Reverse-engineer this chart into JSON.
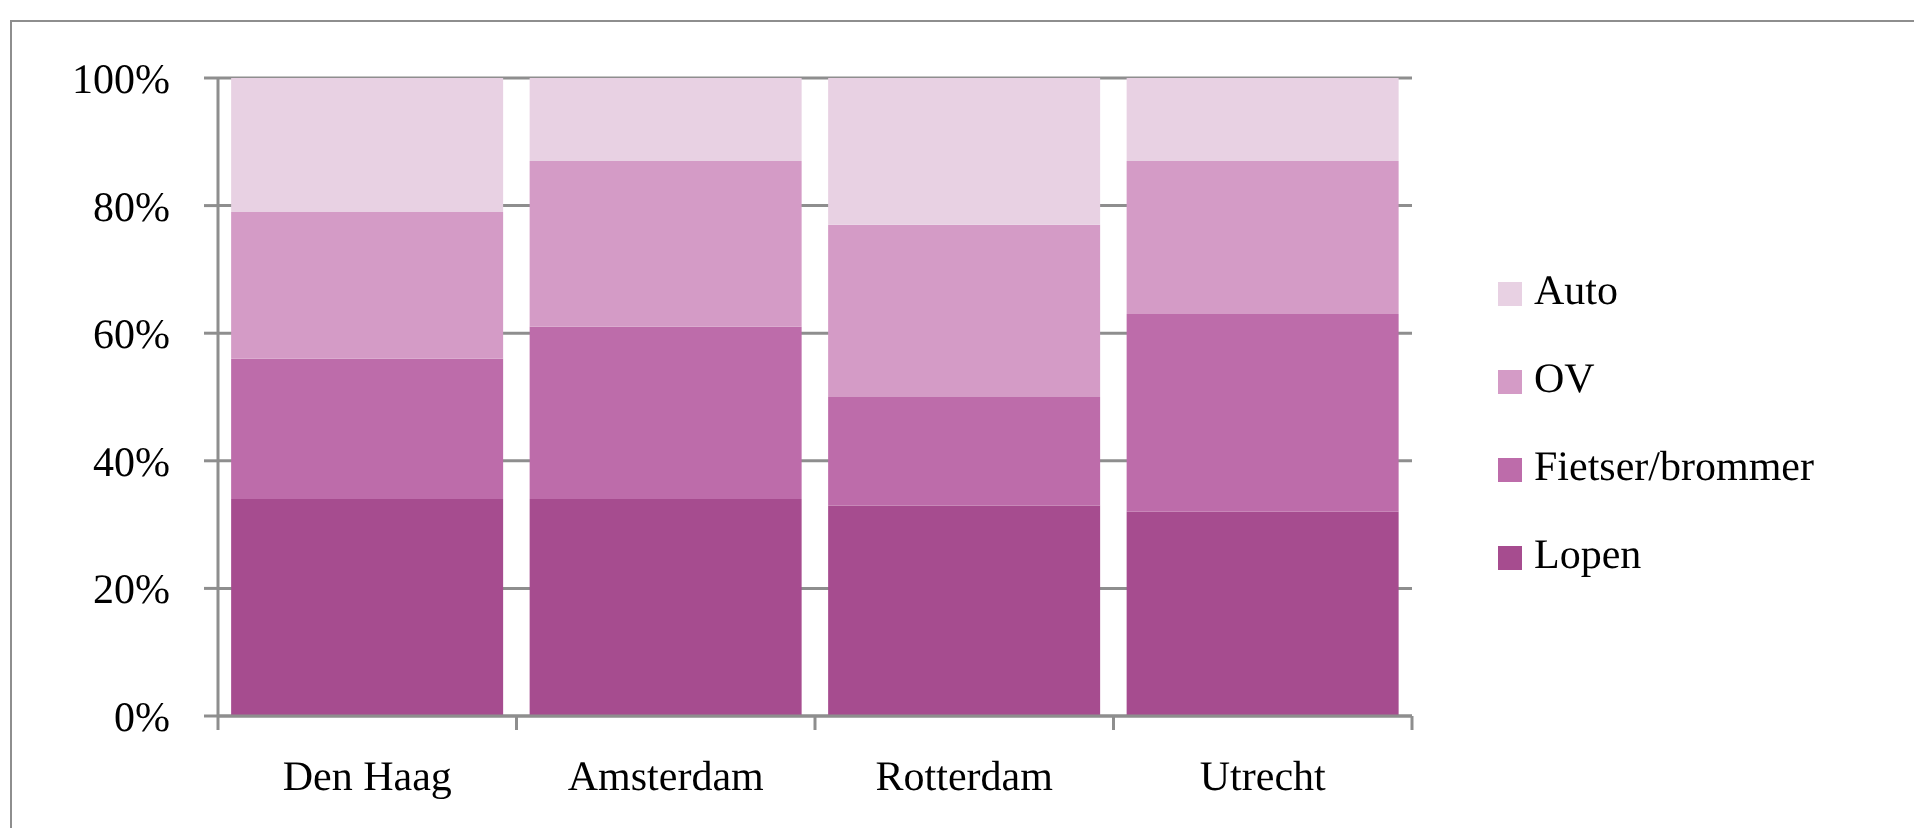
{
  "chart_data": {
    "type": "bar",
    "stacked": true,
    "categories": [
      "Den Haag",
      "Amsterdam",
      "Rotterdam",
      "Utrecht"
    ],
    "series": [
      {
        "name": "Lopen",
        "color": "#a64c8f",
        "values": [
          34,
          34,
          33,
          32
        ]
      },
      {
        "name": "Fietser/brommer",
        "color": "#bd6caa",
        "values": [
          22,
          27,
          17,
          31
        ]
      },
      {
        "name": "OV",
        "color": "#d49bc6",
        "values": [
          23,
          26,
          27,
          24
        ]
      },
      {
        "name": "Auto",
        "color": "#e8d1e3",
        "values": [
          21,
          13,
          23,
          13
        ]
      }
    ],
    "ylim": [
      0,
      100
    ],
    "yticks": [
      {
        "value": 0,
        "label": "0%"
      },
      {
        "value": 20,
        "label": "20%"
      },
      {
        "value": 40,
        "label": "40%"
      },
      {
        "value": 60,
        "label": "60%"
      },
      {
        "value": 80,
        "label": "80%"
      },
      {
        "value": 100,
        "label": "100%"
      }
    ],
    "grid": "y",
    "legend": "right"
  }
}
